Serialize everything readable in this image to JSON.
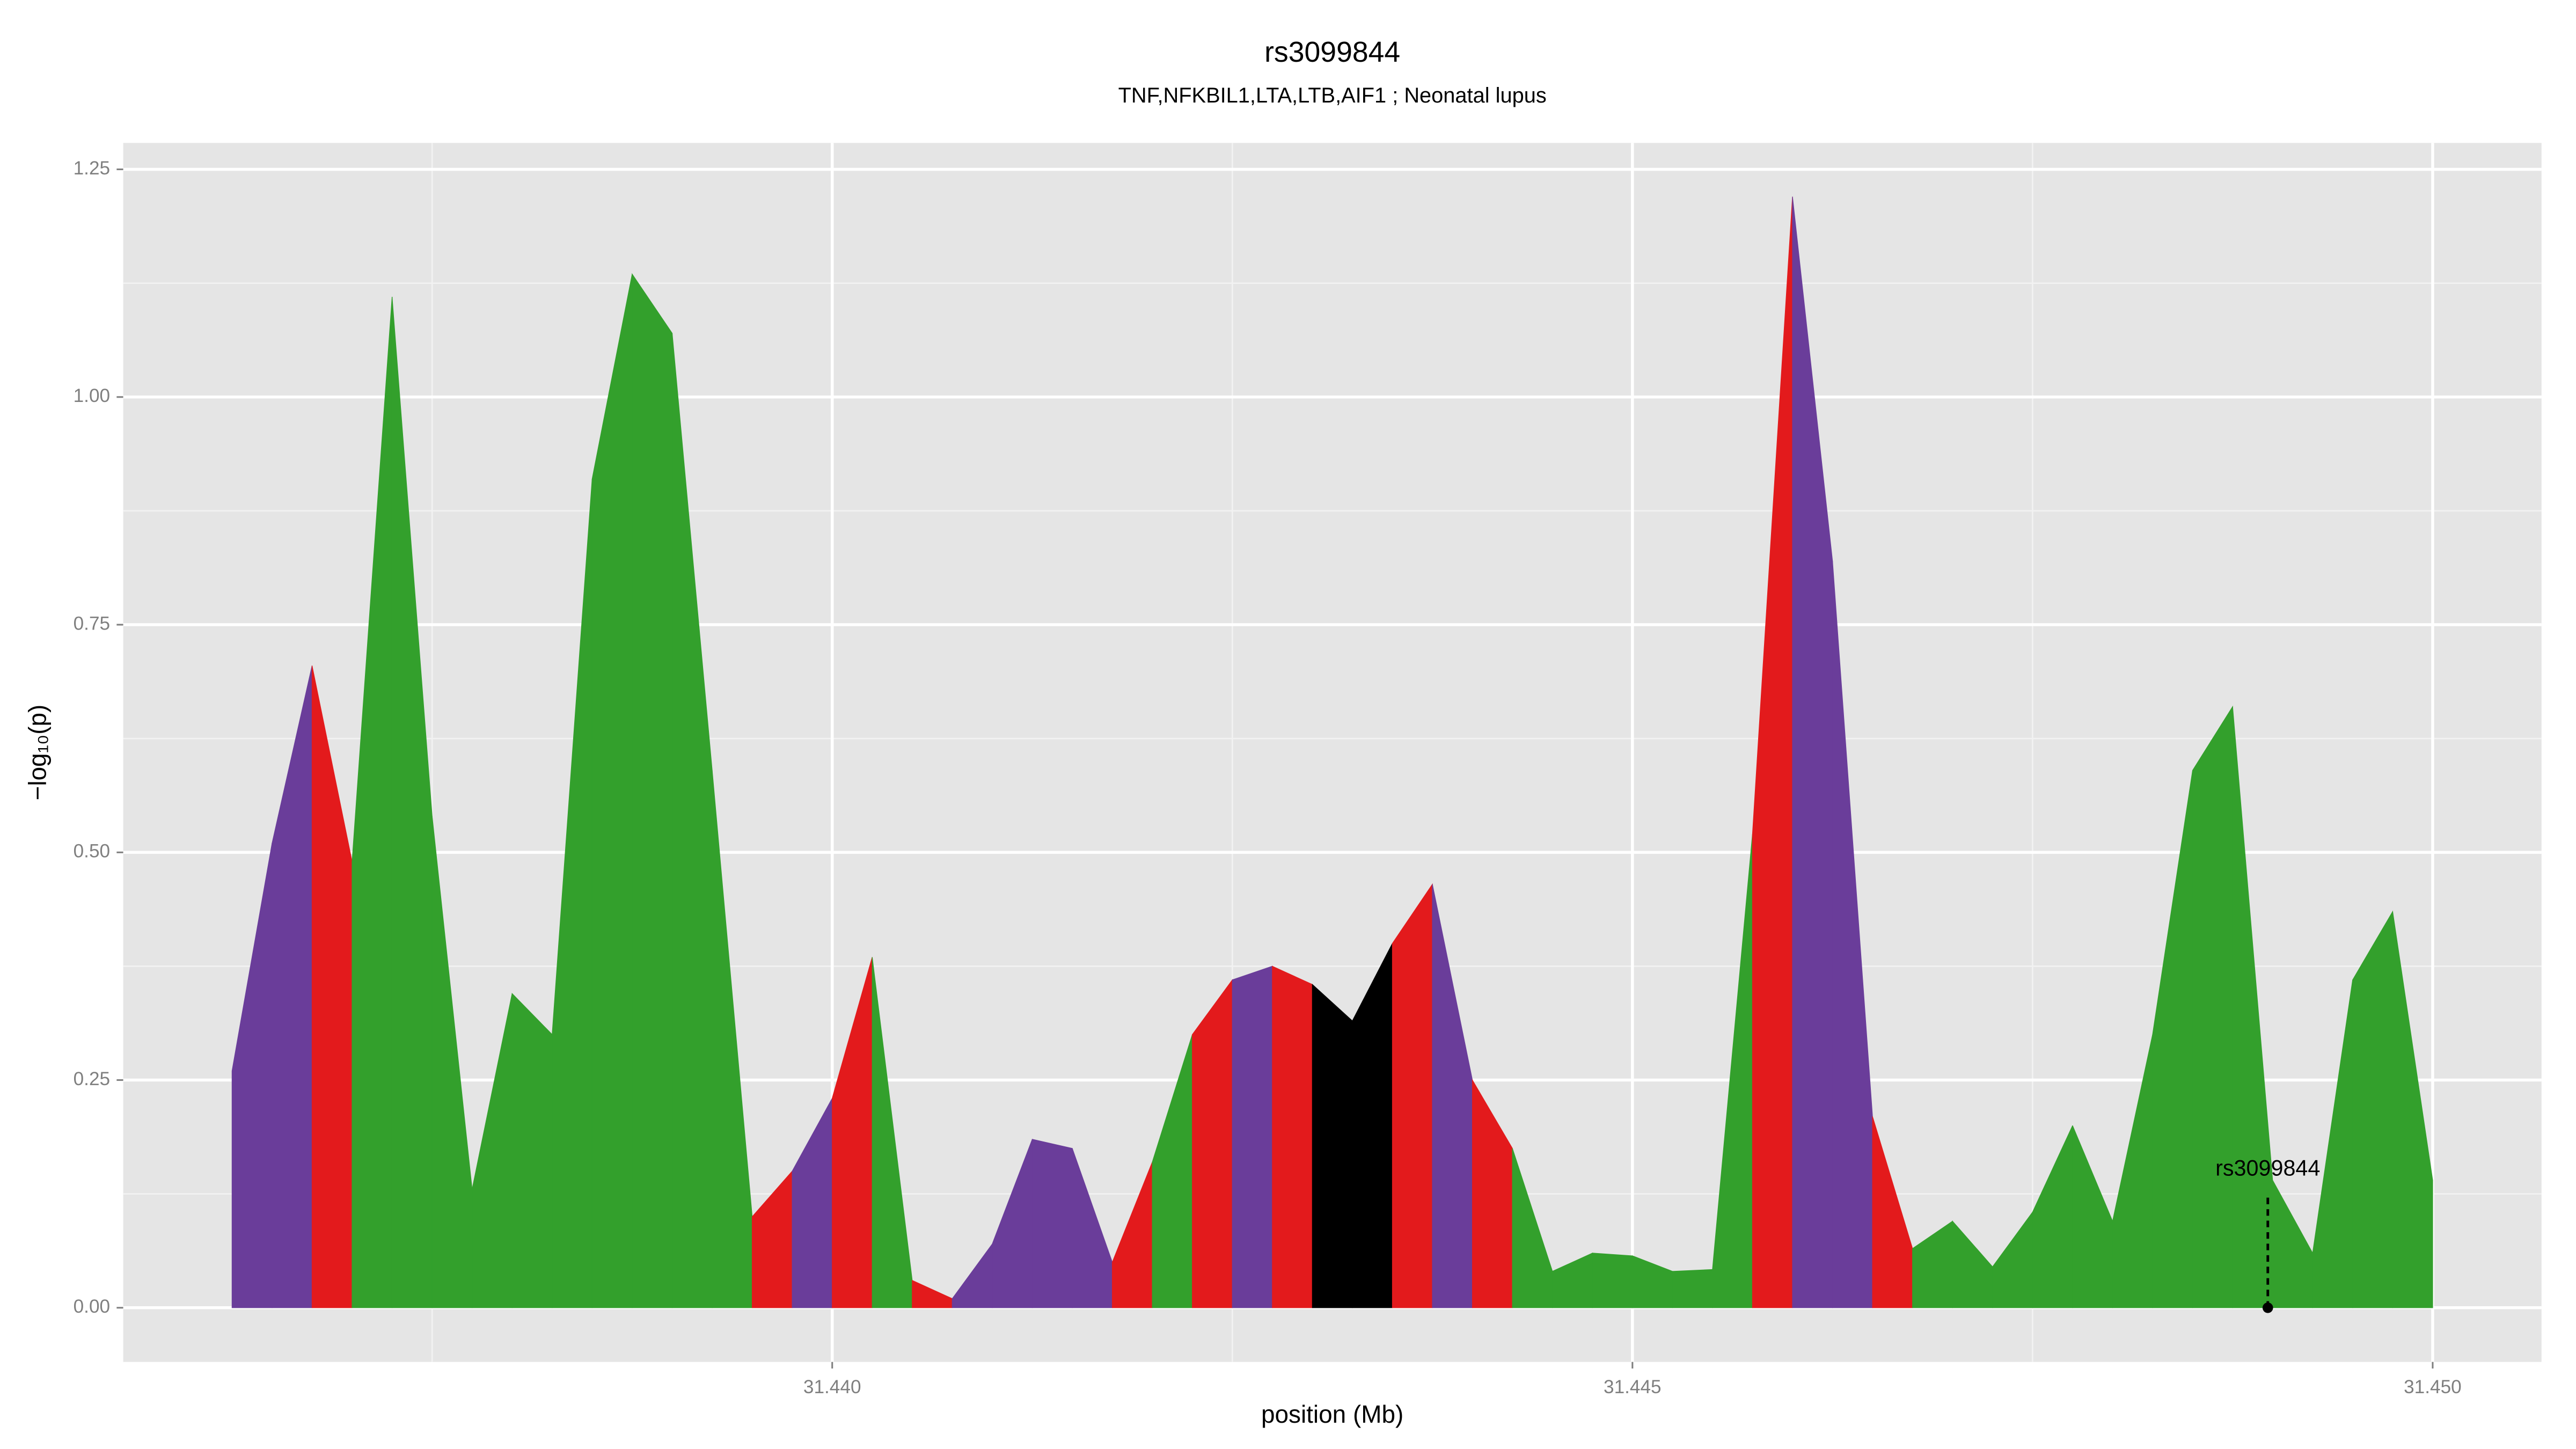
{
  "chart_data": {
    "type": "area",
    "title": "rs3099844",
    "subtitle": "TNF,NFKBIL1,LTA,LTB,AIF1 ; Neonatal lupus",
    "xlabel": "position (Mb)",
    "ylabel": "−log₁₀(p)",
    "x": [
      31.43625,
      31.4365,
      31.43675,
      31.437,
      31.43725,
      31.4375,
      31.43775,
      31.438,
      31.43825,
      31.4385,
      31.43875,
      31.439,
      31.43925,
      31.4395,
      31.43975,
      31.44,
      31.44025,
      31.4405,
      31.44075,
      31.441,
      31.44125,
      31.4415,
      31.44175,
      31.442,
      31.44225,
      31.4425,
      31.44275,
      31.443,
      31.44325,
      31.4435,
      31.44375,
      31.444,
      31.44425,
      31.4445,
      31.44475,
      31.445,
      31.44525,
      31.4455,
      31.44575,
      31.446,
      31.44625,
      31.4465,
      31.44675,
      31.447,
      31.44725,
      31.4475,
      31.44775,
      31.448,
      31.44825,
      31.4485,
      31.44875,
      31.449,
      31.44925,
      31.4495,
      31.44975,
      31.45
    ],
    "values": [
      0.26,
      0.51,
      0.705,
      0.49,
      1.11,
      0.54,
      0.13,
      0.345,
      0.3,
      0.91,
      1.135,
      1.07,
      0.59,
      0.1,
      0.15,
      0.23,
      0.385,
      0.03,
      0.01,
      0.07,
      0.185,
      0.175,
      0.05,
      0.16,
      0.3,
      0.36,
      0.375,
      0.355,
      0.315,
      0.4,
      0.465,
      0.25,
      0.175,
      0.04,
      0.06,
      0.057,
      0.04,
      0.042,
      0.52,
      1.22,
      0.82,
      0.21,
      0.065,
      0.095,
      0.045,
      0.105,
      0.2,
      0.095,
      0.3,
      0.59,
      0.66,
      0.14,
      0.06,
      0.36,
      0.435,
      0.14
    ],
    "segment_colors": [
      "#6a3d9a",
      "#6a3d9a",
      "#e31a1c",
      "#33a02c",
      "#33a02c",
      "#33a02c",
      "#33a02c",
      "#33a02c",
      "#33a02c",
      "#33a02c",
      "#33a02c",
      "#33a02c",
      "#33a02c",
      "#e31a1c",
      "#6a3d9a",
      "#e31a1c",
      "#33a02c",
      "#e31a1c",
      "#6a3d9a",
      "#6a3d9a",
      "#6a3d9a",
      "#6a3d9a",
      "#e31a1c",
      "#33a02c",
      "#e31a1c",
      "#6a3d9a",
      "#e31a1c",
      "#000000",
      "#000000",
      "#e31a1c",
      "#6a3d9a",
      "#e31a1c",
      "#33a02c",
      "#33a02c",
      "#33a02c",
      "#33a02c",
      "#33a02c",
      "#33a02c",
      "#e31a1c",
      "#6a3d9a",
      "#6a3d9a",
      "#e31a1c",
      "#33a02c",
      "#33a02c",
      "#33a02c",
      "#33a02c",
      "#33a02c",
      "#33a02c",
      "#33a02c",
      "#33a02c",
      "#33a02c",
      "#33a02c",
      "#33a02c",
      "#33a02c",
      "#33a02c"
    ],
    "annotation": {
      "text": "rs3099844",
      "x": 31.44897,
      "y": 0
    },
    "xlim": [
      31.43557,
      31.45068
    ],
    "ylim": [
      -0.0595,
      1.279
    ],
    "xticks": [
      {
        "value": 31.44,
        "label": "31.440"
      },
      {
        "value": 31.445,
        "label": "31.445"
      },
      {
        "value": 31.45,
        "label": "31.450"
      }
    ],
    "yticks": [
      {
        "value": 0,
        "label": "0.00"
      },
      {
        "value": 0.25,
        "label": "0.25"
      },
      {
        "value": 0.5,
        "label": "0.50"
      },
      {
        "value": 0.75,
        "label": "0.75"
      },
      {
        "value": 1,
        "label": "1.00"
      },
      {
        "value": 1.25,
        "label": "1.25"
      }
    ],
    "grid": true
  }
}
